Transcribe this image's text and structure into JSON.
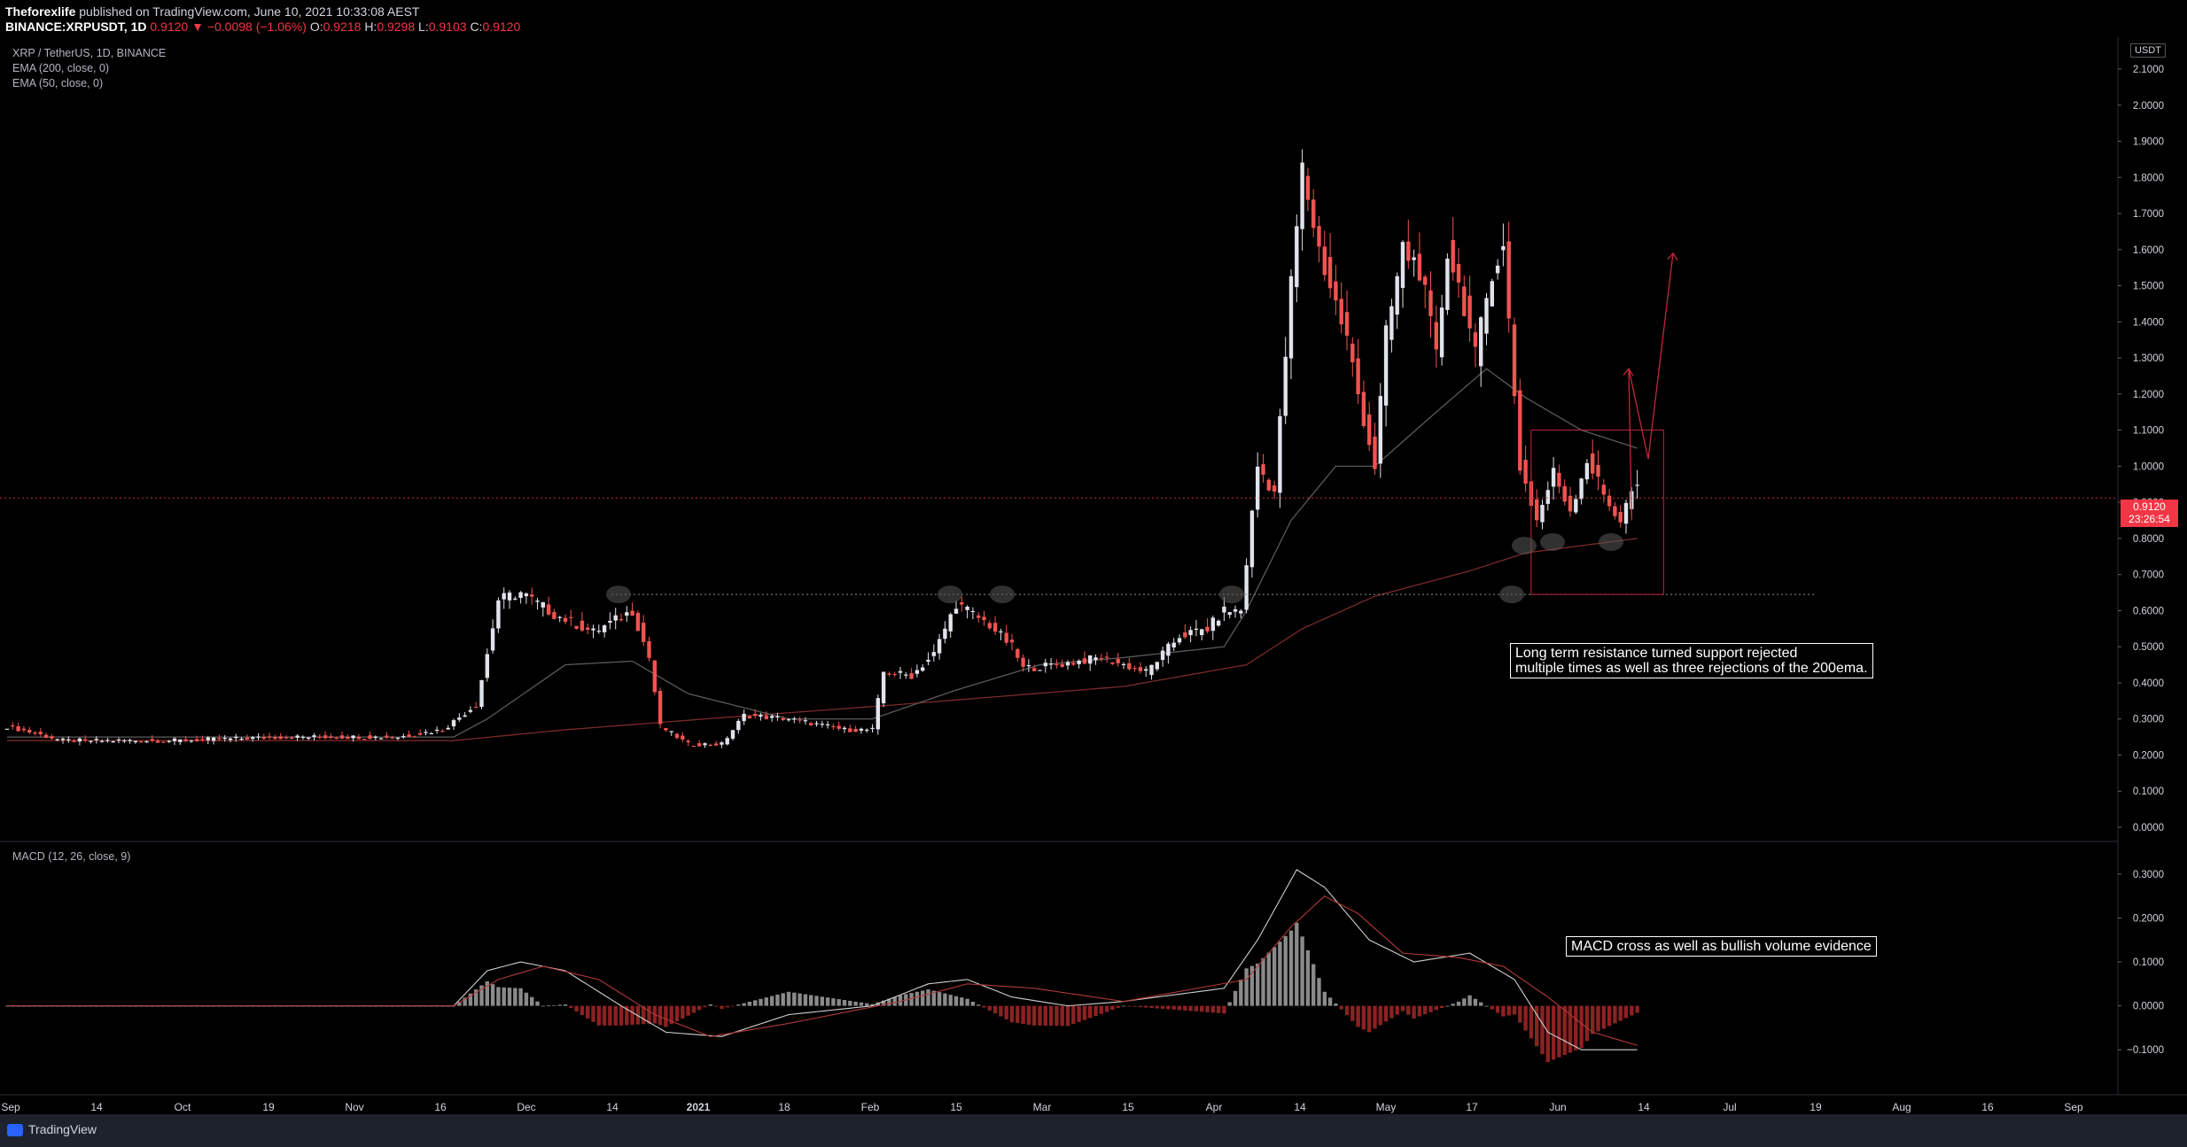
{
  "header": {
    "publisher": "Theforexlife",
    "published_text": "published on TradingView.com, June 10, 2021 10:33:08 AEST",
    "symbol": "BINANCE:XRPUSDT, 1D",
    "last": "0.9120",
    "change": "−0.0098 (−1.06%)",
    "o_label": "O:",
    "o_value": "0.9218",
    "h_label": "H:",
    "h_value": "0.9298",
    "l_label": "L:",
    "l_value": "0.9103",
    "c_label": "C:",
    "c_value": "0.9120"
  },
  "legend": {
    "title": "XRP / TetherUS, 1D, BINANCE",
    "ema200": "EMA (200, close, 0)",
    "ema50": "EMA (50, close, 0)",
    "macd": "MACD (12, 26, close, 9)"
  },
  "price_axis": {
    "currency": "USDT",
    "last_price_label": "0.9120",
    "countdown": "23:26:54"
  },
  "annotations": {
    "note1_line1": "Long term resistance turned support rejected",
    "note1_line2": "multiple times as well as three rejections of the 200ema.",
    "note2": "MACD cross as well as bullish volume evidence"
  },
  "footer": {
    "brand": "TradingView"
  },
  "colors": {
    "up": "#e0e3eb",
    "down": "#f05350",
    "ema200": "#7a2a2a",
    "ema50": "#5a5a5a",
    "accent": "#f23645"
  },
  "chart_data": {
    "type": "candlestick",
    "price_ticks": [
      "2.1000",
      "2.0000",
      "1.9000",
      "1.8000",
      "1.7000",
      "1.6000",
      "1.5000",
      "1.4000",
      "1.3000",
      "1.2000",
      "1.1000",
      "1.0000",
      "0.9000",
      "0.8000",
      "0.7000",
      "0.6000",
      "0.5000",
      "0.4000",
      "0.3000",
      "0.2000",
      "0.1000",
      "0.0000"
    ],
    "macd_ticks": [
      "0.3000",
      "0.2000",
      "0.1000",
      "0.0000",
      "−0.1000"
    ],
    "x_ticks": [
      "Sep",
      "14",
      "Oct",
      "19",
      "Nov",
      "16",
      "Dec",
      "14",
      "2021",
      "18",
      "Feb",
      "15",
      "Mar",
      "15",
      "Apr",
      "14",
      "May",
      "17",
      "Jun",
      "14",
      "Jul",
      "19",
      "Aug",
      "16",
      "Sep"
    ],
    "ylim": [
      0,
      2.1
    ],
    "macd_ylim": [
      -0.15,
      0.33
    ],
    "support_level": 0.645,
    "last_price": 0.912,
    "range_box": {
      "low": 0.645,
      "high": 1.1
    },
    "projection": [
      0.85,
      1.27,
      1.02,
      1.59
    ],
    "close_anchors": [
      [
        0,
        0.28
      ],
      [
        10,
        0.24
      ],
      [
        30,
        0.24
      ],
      [
        50,
        0.25
      ],
      [
        70,
        0.25
      ],
      [
        78,
        0.27
      ],
      [
        84,
        0.34
      ],
      [
        86,
        0.48
      ],
      [
        88,
        0.63
      ],
      [
        92,
        0.65
      ],
      [
        98,
        0.59
      ],
      [
        105,
        0.54
      ],
      [
        112,
        0.6
      ],
      [
        115,
        0.47
      ],
      [
        117,
        0.28
      ],
      [
        122,
        0.23
      ],
      [
        128,
        0.23
      ],
      [
        132,
        0.31
      ],
      [
        140,
        0.3
      ],
      [
        150,
        0.27
      ],
      [
        155,
        0.27
      ],
      [
        157,
        0.43
      ],
      [
        162,
        0.42
      ],
      [
        166,
        0.48
      ],
      [
        170,
        0.62
      ],
      [
        176,
        0.56
      ],
      [
        180,
        0.5
      ],
      [
        182,
        0.44
      ],
      [
        188,
        0.45
      ],
      [
        196,
        0.47
      ],
      [
        204,
        0.43
      ],
      [
        210,
        0.53
      ],
      [
        215,
        0.55
      ],
      [
        218,
        0.6
      ],
      [
        221,
        0.6
      ],
      [
        224,
        1.0
      ],
      [
        227,
        0.93
      ],
      [
        230,
        1.5
      ],
      [
        232,
        1.82
      ],
      [
        235,
        1.6
      ],
      [
        240,
        1.35
      ],
      [
        242,
        1.2
      ],
      [
        245,
        1.0
      ],
      [
        247,
        1.36
      ],
      [
        250,
        1.6
      ],
      [
        253,
        1.55
      ],
      [
        256,
        1.3
      ],
      [
        258,
        1.6
      ],
      [
        261,
        1.45
      ],
      [
        263,
        1.3
      ],
      [
        266,
        1.55
      ],
      [
        268,
        1.6
      ],
      [
        271,
        1.0
      ],
      [
        274,
        0.85
      ],
      [
        277,
        0.98
      ],
      [
        280,
        0.88
      ],
      [
        283,
        1.02
      ],
      [
        286,
        0.92
      ],
      [
        289,
        0.85
      ],
      [
        291,
        0.93
      ]
    ],
    "ema50_anchors": [
      [
        0,
        0.25
      ],
      [
        80,
        0.25
      ],
      [
        86,
        0.3
      ],
      [
        100,
        0.45
      ],
      [
        112,
        0.46
      ],
      [
        122,
        0.37
      ],
      [
        140,
        0.3
      ],
      [
        155,
        0.3
      ],
      [
        170,
        0.38
      ],
      [
        185,
        0.45
      ],
      [
        200,
        0.47
      ],
      [
        218,
        0.5
      ],
      [
        222,
        0.6
      ],
      [
        230,
        0.85
      ],
      [
        238,
        1.0
      ],
      [
        245,
        1.0
      ],
      [
        256,
        1.15
      ],
      [
        265,
        1.27
      ],
      [
        272,
        1.19
      ],
      [
        282,
        1.1
      ],
      [
        292,
        1.05
      ]
    ],
    "ema200_anchors": [
      [
        0,
        0.24
      ],
      [
        80,
        0.24
      ],
      [
        100,
        0.27
      ],
      [
        125,
        0.3
      ],
      [
        160,
        0.34
      ],
      [
        200,
        0.39
      ],
      [
        222,
        0.45
      ],
      [
        232,
        0.55
      ],
      [
        245,
        0.64
      ],
      [
        262,
        0.71
      ],
      [
        272,
        0.76
      ],
      [
        292,
        0.8
      ]
    ],
    "macd_anchors": [
      [
        0,
        0.0
      ],
      [
        80,
        0.0
      ],
      [
        86,
        0.08
      ],
      [
        92,
        0.1
      ],
      [
        100,
        0.08
      ],
      [
        110,
        0.0
      ],
      [
        118,
        -0.06
      ],
      [
        128,
        -0.07
      ],
      [
        140,
        -0.02
      ],
      [
        155,
        0.0
      ],
      [
        165,
        0.05
      ],
      [
        172,
        0.06
      ],
      [
        180,
        0.02
      ],
      [
        190,
        0.0
      ],
      [
        200,
        0.01
      ],
      [
        218,
        0.04
      ],
      [
        224,
        0.15
      ],
      [
        231,
        0.31
      ],
      [
        236,
        0.27
      ],
      [
        244,
        0.15
      ],
      [
        252,
        0.1
      ],
      [
        262,
        0.12
      ],
      [
        270,
        0.06
      ],
      [
        276,
        -0.06
      ],
      [
        282,
        -0.1
      ],
      [
        288,
        -0.1
      ],
      [
        292,
        -0.1
      ]
    ],
    "signal_anchors": [
      [
        0,
        0.0
      ],
      [
        80,
        0.0
      ],
      [
        88,
        0.06
      ],
      [
        96,
        0.09
      ],
      [
        106,
        0.06
      ],
      [
        116,
        -0.02
      ],
      [
        126,
        -0.07
      ],
      [
        140,
        -0.04
      ],
      [
        160,
        0.01
      ],
      [
        172,
        0.05
      ],
      [
        184,
        0.04
      ],
      [
        200,
        0.01
      ],
      [
        222,
        0.06
      ],
      [
        230,
        0.18
      ],
      [
        236,
        0.25
      ],
      [
        242,
        0.21
      ],
      [
        250,
        0.12
      ],
      [
        260,
        0.11
      ],
      [
        268,
        0.09
      ],
      [
        276,
        0.02
      ],
      [
        284,
        -0.06
      ],
      [
        292,
        -0.09
      ]
    ]
  }
}
